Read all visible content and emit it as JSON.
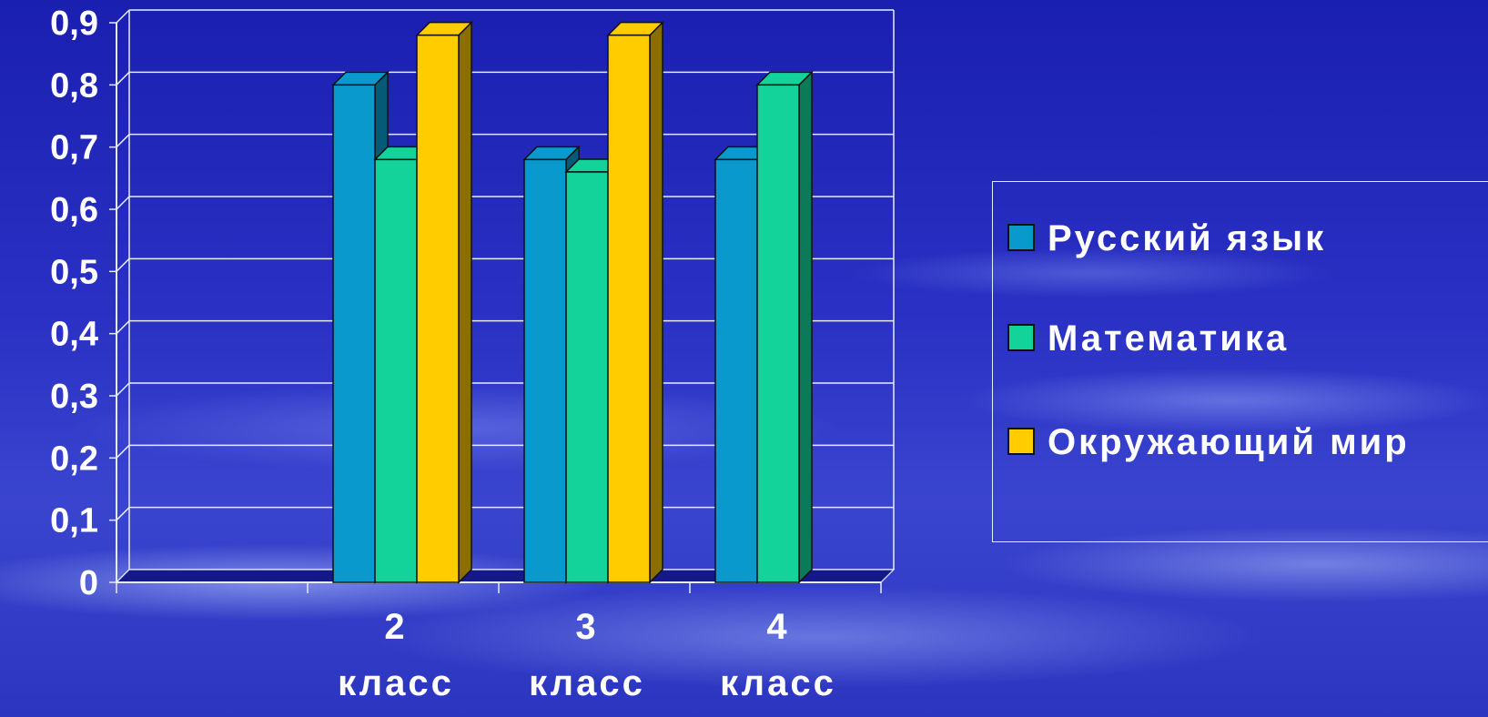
{
  "chart_data": {
    "type": "bar",
    "categories": [
      "2 класс",
      "3 класс",
      "4 класс"
    ],
    "category_lines": [
      [
        "2",
        "класс"
      ],
      [
        "3",
        "класс"
      ],
      [
        "4",
        "класс"
      ]
    ],
    "series": [
      {
        "name": "Русский язык",
        "values": [
          0.8,
          0.68,
          0.68
        ],
        "color": "#0a99cc",
        "side_color": "#065a78"
      },
      {
        "name": "Математика",
        "values": [
          0.68,
          0.66,
          0.8
        ],
        "color": "#14d39a",
        "side_color": "#0b7a58"
      },
      {
        "name": "Окружающий мир",
        "values": [
          0.88,
          0.88,
          null
        ],
        "color": "#ffcc00",
        "side_color": "#8a6e00"
      }
    ],
    "y_ticks": [
      "0",
      "0,1",
      "0,2",
      "0,3",
      "0,4",
      "0,5",
      "0,6",
      "0,7",
      "0,8",
      "0,9"
    ],
    "ylim": [
      0,
      0.9
    ],
    "grid": true,
    "legend_position": "right",
    "xlabel": "",
    "ylabel": "",
    "title": ""
  }
}
